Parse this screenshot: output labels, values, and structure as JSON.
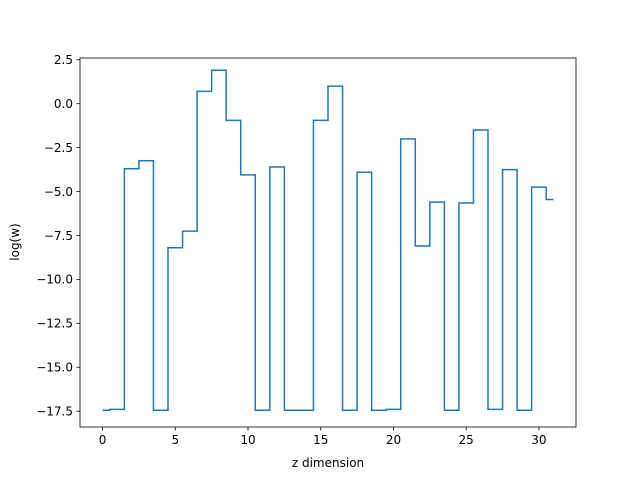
{
  "chart_data": {
    "type": "line",
    "drawstyle": "steps-mid",
    "xlabel": "z dimension",
    "ylabel": "log(w)",
    "xlim": [
      -1.55,
      32.55
    ],
    "ylim": [
      -18.4,
      2.6
    ],
    "xticks": [
      0,
      5,
      10,
      15,
      20,
      25,
      30
    ],
    "xtick_labels": [
      "0",
      "5",
      "10",
      "15",
      "20",
      "25",
      "30"
    ],
    "yticks": [
      2.5,
      0.0,
      -2.5,
      -5.0,
      -7.5,
      -10.0,
      -12.5,
      -15.0,
      -17.5
    ],
    "ytick_labels": [
      "2.5",
      "0.0",
      "−2.5",
      "−5.0",
      "−7.5",
      "−10.0",
      "−12.5",
      "−15.0",
      "−17.5"
    ],
    "grid": false,
    "color": "#1f77b4",
    "series": [
      {
        "x": [
          0,
          1,
          2,
          3,
          4,
          5,
          6,
          7,
          8,
          9,
          10,
          11,
          12,
          13,
          14,
          15,
          16,
          17,
          18,
          19,
          20,
          21,
          22,
          23,
          24,
          25,
          26,
          27,
          28,
          29,
          30,
          31
        ],
        "values": [
          -17.45,
          -17.4,
          -3.7,
          -3.25,
          -17.45,
          -8.2,
          -7.25,
          0.7,
          1.9,
          -0.95,
          -4.05,
          -17.45,
          -3.6,
          -17.45,
          -17.45,
          -0.95,
          1.0,
          -17.45,
          -3.9,
          -17.45,
          -17.4,
          -2.0,
          -8.1,
          -5.6,
          -17.45,
          -5.65,
          -1.5,
          -17.4,
          -3.75,
          -17.45,
          -4.75,
          -5.45
        ]
      }
    ]
  }
}
